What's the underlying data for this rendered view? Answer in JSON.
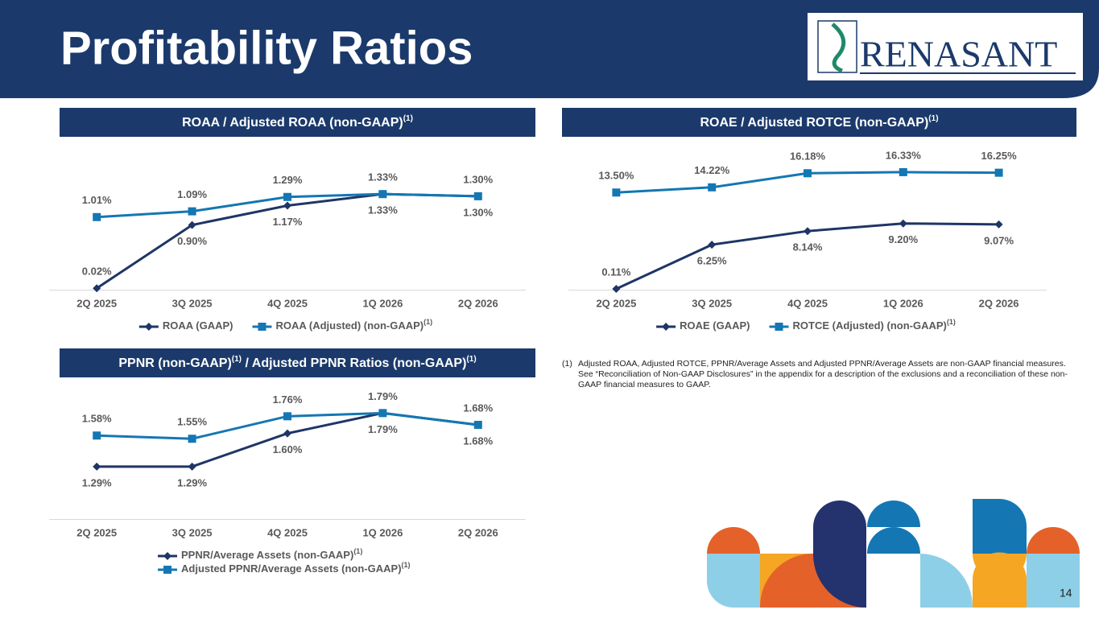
{
  "header": {
    "title": "Profitability Ratios",
    "logo": "RENASANT"
  },
  "chart_data": [
    {
      "type": "line",
      "title": [
        "ROAA / Adjusted ROAA (non-GAAP)",
        "(1)"
      ],
      "categories": [
        "2Q 2025",
        "3Q 2025",
        "4Q 2025",
        "1Q 2026",
        "2Q 2026"
      ],
      "ylim": [
        0,
        1.5
      ],
      "series": [
        {
          "name": "ROAA (GAAP)",
          "color": "#1f3566",
          "marker": "diamond",
          "values": [
            0.02,
            0.9,
            1.17,
            1.33,
            1.3
          ],
          "value_labels": [
            "0.02%",
            "0.90%",
            "1.17%",
            "1.33%",
            "1.30%"
          ]
        },
        {
          "name": "ROAA (Adjusted) (non-GAAP)",
          "name_note": "(1)",
          "color": "#1477b3",
          "marker": "square",
          "values": [
            1.01,
            1.09,
            1.29,
            1.33,
            1.3
          ],
          "value_labels": [
            "1.01%",
            "1.09%",
            "1.29%",
            "1.33%",
            "1.30%"
          ]
        }
      ]
    },
    {
      "type": "line",
      "title": [
        "ROAE / Adjusted ROTCE (non-GAAP)",
        "(1)"
      ],
      "categories": [
        "2Q 2025",
        "3Q 2025",
        "4Q 2025",
        "1Q 2026",
        "2Q 2026"
      ],
      "ylim": [
        0,
        18
      ],
      "series": [
        {
          "name": "ROAE (GAAP)",
          "color": "#1f3566",
          "marker": "diamond",
          "values": [
            0.11,
            6.25,
            8.14,
            9.2,
            9.07
          ],
          "value_labels": [
            "0.11%",
            "6.25%",
            "8.14%",
            "9.20%",
            "9.07%"
          ]
        },
        {
          "name": "ROTCE (Adjusted) (non-GAAP)",
          "name_note": "(1)",
          "color": "#1477b3",
          "marker": "square",
          "values": [
            13.5,
            14.22,
            16.18,
            16.33,
            16.25
          ],
          "value_labels": [
            "13.50%",
            "14.22%",
            "16.18%",
            "16.33%",
            "16.25%"
          ]
        }
      ]
    },
    {
      "type": "line",
      "title": [
        "PPNR (non-GAAP)",
        "(1)",
        " / Adjusted PPNR Ratios (non-GAAP)",
        "(1)"
      ],
      "categories": [
        "2Q 2025",
        "3Q 2025",
        "4Q 2025",
        "1Q 2026",
        "2Q 2026"
      ],
      "ylim": [
        0.8,
        1.8
      ],
      "series": [
        {
          "name": "PPNR/Average Assets (non-GAAP)",
          "name_note": "(1)",
          "color": "#1f3566",
          "marker": "diamond",
          "values": [
            1.29,
            1.29,
            1.6,
            1.79,
            1.68
          ],
          "value_labels": [
            "1.29%",
            "1.29%",
            "1.60%",
            "1.79%",
            "1.68%"
          ]
        },
        {
          "name": "Adjusted PPNR/Average Assets (non-GAAP)",
          "name_note": "(1)",
          "color": "#1477b3",
          "marker": "square",
          "values": [
            1.58,
            1.55,
            1.76,
            1.79,
            1.68
          ],
          "value_labels": [
            "1.58%",
            "1.55%",
            "1.76%",
            "1.79%",
            "1.68%"
          ]
        }
      ]
    }
  ],
  "footnote": {
    "marker": "(1)",
    "text": "Adjusted ROAA, Adjusted ROTCE, PPNR/Average Assets and Adjusted PPNR/Average Assets are non-GAAP financial measures. See “Reconciliation of Non-GAAP Disclosures” in the appendix for a description of the exclusions and a reconciliation of these non-GAAP financial measures to GAAP."
  },
  "page_number": "14"
}
